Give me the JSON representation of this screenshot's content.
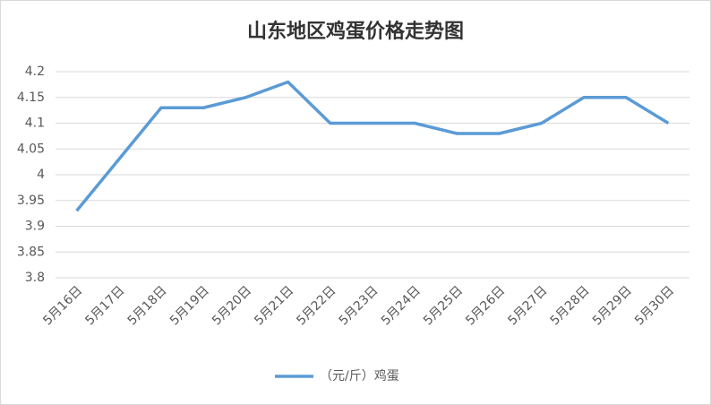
{
  "chart_data": {
    "type": "line",
    "title": "山东地区鸡蛋价格走势图",
    "categories": [
      "5月16日",
      "5月17日",
      "5月18日",
      "5月19日",
      "5月20日",
      "5月21日",
      "5月22日",
      "5月23日",
      "5月24日",
      "5月25日",
      "5月26日",
      "5月27日",
      "5月28日",
      "5月29日",
      "5月30日"
    ],
    "series": [
      {
        "name": "（元/斤）鸡蛋",
        "color": "#5b9bd5",
        "values": [
          3.93,
          4.03,
          4.13,
          4.13,
          4.15,
          4.18,
          4.1,
          4.1,
          4.1,
          4.08,
          4.08,
          4.1,
          4.15,
          4.15,
          4.1
        ]
      }
    ],
    "ylim": [
      3.8,
      4.2
    ],
    "yticks": [
      3.8,
      3.85,
      3.9,
      3.95,
      4,
      4.05,
      4.1,
      4.15,
      4.2
    ],
    "grid": true,
    "legend": "bottom"
  }
}
